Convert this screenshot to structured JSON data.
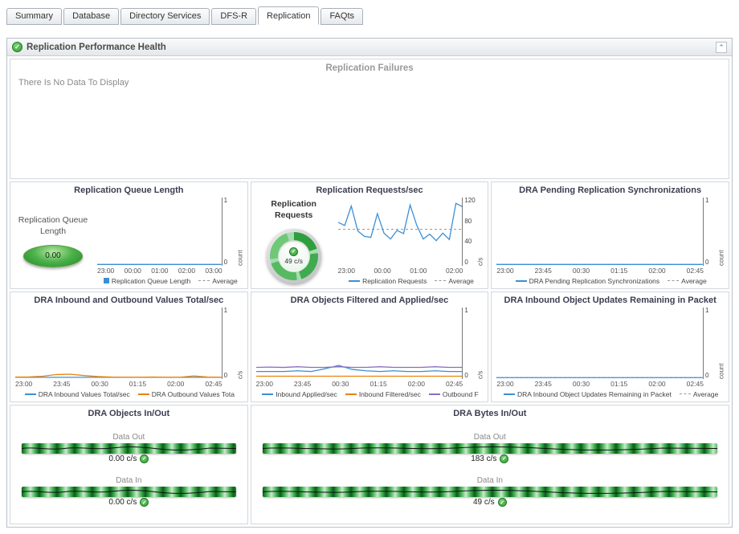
{
  "tabs": [
    {
      "label": "Summary"
    },
    {
      "label": "Database"
    },
    {
      "label": "Directory Services"
    },
    {
      "label": "DFS-R"
    },
    {
      "label": "Replication"
    },
    {
      "label": "FAQts"
    }
  ],
  "active_tab": "Replication",
  "header": {
    "title": "Replication Performance Health"
  },
  "failures": {
    "title": "Replication Failures",
    "message": "There Is No Data To Display"
  },
  "icons": {
    "check": "✓",
    "collapse": "⌃"
  },
  "colors": {
    "status_green": "#2f9e2f",
    "series_blue": "#3b8fd4",
    "series_orange": "#e8820c",
    "series_purple": "#8e6bbf",
    "average_gray": "#999999"
  },
  "gauges": {
    "queue": {
      "label": "Replication Queue Length",
      "value": "0.00"
    },
    "requests": {
      "label": "Replication Requests",
      "value": "49 c/s"
    }
  },
  "chart_data": [
    {
      "id": "queue",
      "type": "line",
      "title": "Replication Queue Length",
      "ylabel": "count",
      "ylim": [
        0,
        1
      ],
      "y_ticks": [
        "1",
        "0"
      ],
      "x_ticks": [
        "23:00",
        "00:00",
        "01:00",
        "02:00",
        "03:00"
      ],
      "average": 0,
      "series": [
        {
          "name": "Replication Queue Length",
          "color": "#3b8fd4",
          "values": [
            0,
            0
          ]
        }
      ],
      "legend": [
        {
          "label": "Replication Queue Length",
          "swatch": "square",
          "color": "#3b8fd4"
        },
        {
          "label": "Average",
          "swatch": "dash",
          "color": "#999999"
        }
      ]
    },
    {
      "id": "requests",
      "type": "line",
      "title": "Replication Requests/sec",
      "ylabel": "c/s",
      "ylim": [
        0,
        120
      ],
      "y_ticks": [
        "120",
        "80",
        "40",
        "0"
      ],
      "x_ticks": [
        "23:00",
        "00:00",
        "01:00",
        "02:00"
      ],
      "average": 65,
      "series": [
        {
          "name": "Replication Requests",
          "color": "#3b8fd4",
          "values": [
            78,
            72,
            108,
            62,
            52,
            50,
            94,
            58,
            47,
            63,
            57,
            110,
            73,
            47,
            56,
            44,
            58,
            46,
            113,
            107
          ]
        }
      ],
      "legend": [
        {
          "label": "Replication Requests",
          "swatch": "line",
          "color": "#3b8fd4"
        },
        {
          "label": "Average",
          "swatch": "dash",
          "color": "#999999"
        }
      ]
    },
    {
      "id": "pending",
      "type": "line",
      "title": "DRA Pending Replication Synchronizations",
      "ylabel": "count",
      "ylim": [
        0,
        1
      ],
      "y_ticks": [
        "1",
        "0"
      ],
      "x_ticks": [
        "23:00",
        "23:45",
        "00:30",
        "01:15",
        "02:00",
        "02:45"
      ],
      "average": 0,
      "series": [
        {
          "name": "DRA Pending Replication Synchronizations",
          "color": "#3b8fd4",
          "values": [
            0,
            0
          ]
        }
      ],
      "legend": [
        {
          "label": "DRA Pending Replication Synchronizations",
          "swatch": "line",
          "color": "#3b8fd4"
        },
        {
          "label": "Average",
          "swatch": "dash",
          "color": "#999999"
        }
      ]
    },
    {
      "id": "inout_values",
      "type": "line",
      "title": "DRA Inbound and Outbound Values Total/sec",
      "ylabel": "c/s",
      "ylim": [
        0,
        1
      ],
      "y_ticks": [
        "1",
        "0"
      ],
      "x_ticks": [
        "23:00",
        "23:45",
        "00:30",
        "01:15",
        "02:00",
        "02:45"
      ],
      "average": null,
      "series": [
        {
          "name": "DRA Inbound Values Total/sec",
          "color": "#3b8fd4",
          "values": [
            0.004,
            0.004
          ]
        },
        {
          "name": "DRA Outbound Values Total/sec",
          "color": "#e8820c",
          "values": [
            0.008,
            0.01,
            0.02,
            0.045,
            0.05,
            0.03,
            0.015,
            0.008,
            0.006,
            0.006,
            0.008,
            0.006,
            0.006,
            0.025,
            0.008,
            0.006
          ]
        }
      ],
      "legend": [
        {
          "label": "DRA Inbound Values Total/sec",
          "swatch": "line",
          "color": "#3b8fd4"
        },
        {
          "label": "DRA Outbound Values Tota",
          "swatch": "line",
          "color": "#e8820c"
        }
      ]
    },
    {
      "id": "filtered_applied",
      "type": "line",
      "title": "DRA Objects Filtered and Applied/sec",
      "ylabel": "c/s",
      "ylim": [
        0,
        1
      ],
      "y_ticks": [
        "1",
        "0"
      ],
      "x_ticks": [
        "23:00",
        "23:45",
        "00:30",
        "01:15",
        "02:00",
        "02:45"
      ],
      "average": null,
      "series": [
        {
          "name": "Inbound Applied/sec",
          "color": "#3b8fd4",
          "values": [
            0.09,
            0.09,
            0.09,
            0.1,
            0.09,
            0.13,
            0.18,
            0.12,
            0.1,
            0.09,
            0.1,
            0.09,
            0.09,
            0.1,
            0.09,
            0.09
          ]
        },
        {
          "name": "Inbound Filtered/sec",
          "color": "#e8820c",
          "values": [
            0.02,
            0.02
          ]
        },
        {
          "name": "Outbound Filtered/sec",
          "color": "#8e6bbf",
          "values": [
            0.15,
            0.155,
            0.15,
            0.16,
            0.15,
            0.15,
            0.16,
            0.15,
            0.15,
            0.16,
            0.15,
            0.15,
            0.15,
            0.16,
            0.15,
            0.15
          ]
        }
      ],
      "legend": [
        {
          "label": "Inbound Applied/sec",
          "swatch": "line",
          "color": "#3b8fd4"
        },
        {
          "label": "Inbound Filtered/sec",
          "swatch": "line",
          "color": "#e8820c"
        },
        {
          "label": "Outbound F",
          "swatch": "line",
          "color": "#8e6bbf"
        }
      ]
    },
    {
      "id": "updates_remaining",
      "type": "line",
      "title": "DRA Inbound Object Updates Remaining in Packet",
      "ylabel": "count",
      "ylim": [
        0,
        1
      ],
      "y_ticks": [
        "1",
        "0"
      ],
      "x_ticks": [
        "23:00",
        "23:45",
        "00:30",
        "01:15",
        "02:00",
        "02:45"
      ],
      "average": 0,
      "series": [
        {
          "name": "DRA Inbound Object Updates Remaining in Packet",
          "color": "#3b8fd4",
          "values": [
            0,
            0
          ]
        }
      ],
      "legend": [
        {
          "label": "DRA Inbound Object Updates Remaining in Packet",
          "swatch": "line",
          "color": "#3b8fd4"
        },
        {
          "label": "Average",
          "swatch": "dash",
          "color": "#999999"
        }
      ]
    }
  ],
  "flow_panels": [
    {
      "title": "DRA Objects In/Out",
      "rows": [
        {
          "label": "Data Out",
          "value": "0.00 c/s"
        },
        {
          "label": "Data In",
          "value": "0.00 c/s"
        }
      ]
    },
    {
      "title": "DRA Bytes In/Out",
      "rows": [
        {
          "label": "Data Out",
          "value": "183 c/s"
        },
        {
          "label": "Data In",
          "value": "49 c/s"
        }
      ]
    }
  ]
}
